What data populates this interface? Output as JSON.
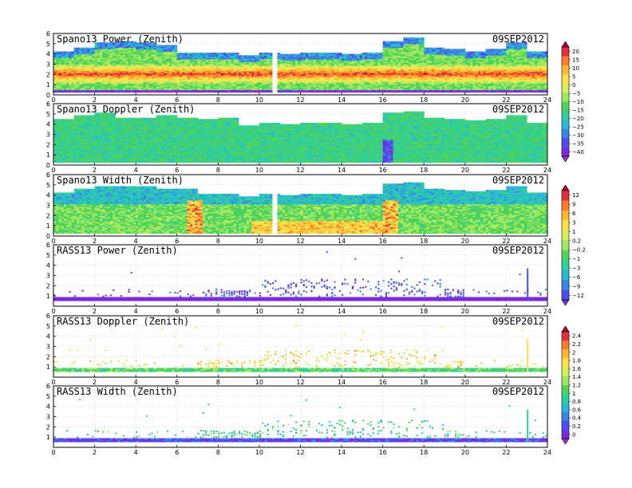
{
  "chart_data": [
    {
      "type": "heatmap",
      "title": "Spano13 Power (Zenith)",
      "date": "09SEP2012",
      "x_ticks": [
        "0",
        "2",
        "4",
        "6",
        "8",
        "10",
        "12",
        "14",
        "16",
        "18",
        "20",
        "22",
        "24"
      ],
      "y_ticks": [
        "0",
        "1",
        "2",
        "3",
        "4",
        "5",
        "6"
      ],
      "xlim": [
        0,
        24
      ],
      "ylim": [
        0,
        6
      ],
      "colorbar_group": 0,
      "profile": {
        "top_height": [
          4.2,
          4.6,
          5.0,
          5.2,
          5.0,
          4.8,
          4.0,
          4.0,
          4.1,
          3.8,
          4.0,
          3.9,
          4.0,
          4.0,
          3.9,
          4.1,
          5.2,
          5.5,
          4.6,
          4.4,
          4.2,
          4.4,
          5.0,
          4.2,
          4.0
        ],
        "band_height": 2.0,
        "band_value": 12,
        "background_value": -10,
        "low_value": -40,
        "gap_hours": [
          10.6,
          10.8
        ]
      }
    },
    {
      "type": "heatmap",
      "title": "Spano13 Doppler (Zenith)",
      "date": "09SEP2012",
      "x_ticks": [
        "0",
        "2",
        "4",
        "6",
        "8",
        "10",
        "12",
        "14",
        "16",
        "18",
        "20",
        "22",
        "24"
      ],
      "y_ticks": [
        "0",
        "1",
        "2",
        "3",
        "4",
        "5",
        "6"
      ],
      "xlim": [
        0,
        24
      ],
      "ylim": [
        0,
        6
      ],
      "colorbar_group": 0,
      "profile": {
        "top_height": [
          4.4,
          4.8,
          5.0,
          4.6,
          4.6,
          4.8,
          4.6,
          4.4,
          4.5,
          3.8,
          4.0,
          3.9,
          4.0,
          4.0,
          3.9,
          4.1,
          5.0,
          5.2,
          4.6,
          4.4,
          4.3,
          4.4,
          4.8,
          4.0,
          3.8
        ],
        "background_value": -15,
        "anomaly_hour": 16.2,
        "anomaly_value": -35
      }
    },
    {
      "type": "heatmap",
      "title": "Spano13 Width (Zenith)",
      "date": "09SEP2012",
      "x_ticks": [
        "0",
        "2",
        "4",
        "6",
        "8",
        "10",
        "12",
        "14",
        "16",
        "18",
        "20",
        "22",
        "24"
      ],
      "y_ticks": [
        "0",
        "1",
        "2",
        "3",
        "4",
        "5",
        "6"
      ],
      "xlim": [
        0,
        24
      ],
      "ylim": [
        0,
        6
      ],
      "colorbar_group": 1,
      "profile": {
        "top_height": [
          4.2,
          4.6,
          4.8,
          4.8,
          4.8,
          4.6,
          4.6,
          4.0,
          4.1,
          3.8,
          4.0,
          3.9,
          4.0,
          4.0,
          3.9,
          4.1,
          5.0,
          5.2,
          4.6,
          4.4,
          4.3,
          4.4,
          4.8,
          4.2,
          4.0
        ],
        "background_value": -1,
        "hot_hours": [
          6.8,
          16.3
        ],
        "hot_value": 9,
        "gap_hours": [
          10.6,
          10.8
        ]
      }
    },
    {
      "type": "scatter",
      "title": "RASS13 Power (Zenith)",
      "date": "09SEP2012",
      "x_ticks": [
        "0",
        "2",
        "4",
        "6",
        "8",
        "10",
        "12",
        "14",
        "16",
        "18",
        "20",
        "22",
        "24"
      ],
      "y_ticks": [
        "1",
        "2",
        "3",
        "4",
        "5",
        "6"
      ],
      "xlim": [
        0,
        24
      ],
      "ylim": [
        0,
        6
      ],
      "colorbar_group": 1,
      "layer": {
        "base_height": 0.6,
        "base_value": -12,
        "scatter_value": -9,
        "spike_hour": 23.0
      }
    },
    {
      "type": "scatter",
      "title": "RASS13 Doppler (Zenith)",
      "date": "09SEP2012",
      "x_ticks": [
        "0",
        "2",
        "4",
        "6",
        "8",
        "10",
        "12",
        "14",
        "16",
        "18",
        "20",
        "22",
        "24"
      ],
      "y_ticks": [
        "1",
        "2",
        "3",
        "4",
        "5",
        "6"
      ],
      "xlim": [
        0,
        24
      ],
      "ylim": [
        0,
        6
      ],
      "colorbar_group": 2,
      "layer": {
        "base_height": 0.6,
        "base_value": 1.1,
        "scatter_value": 1.6,
        "spike_hour": 23.0
      }
    },
    {
      "type": "scatter",
      "title": "RASS13 Width (Zenith)",
      "date": "09SEP2012",
      "x_ticks": [
        "0",
        "2",
        "4",
        "6",
        "8",
        "10",
        "12",
        "14",
        "16",
        "18",
        "20",
        "22",
        "24"
      ],
      "y_ticks": [
        "1",
        "2",
        "3",
        "4",
        "5",
        "6"
      ],
      "xlim": [
        0,
        24
      ],
      "ylim": [
        0,
        6
      ],
      "colorbar_group": 2,
      "layer": {
        "base_height": 0.6,
        "base_value": 0.4,
        "scatter_value": 1.0,
        "spike_hour": 23.0
      }
    }
  ],
  "colorbars": [
    {
      "labels": [
        "20",
        "15",
        "10",
        "5",
        "0",
        "−5",
        "−10",
        "−15",
        "−20",
        "−25",
        "−30",
        "−35",
        "−40"
      ],
      "colors": [
        "#b0003a",
        "#e0303a",
        "#ff7a2a",
        "#ffb732",
        "#fde04a",
        "#d7ee5a",
        "#9fe860",
        "#4fd35a",
        "#2fcf9c",
        "#2ab8d6",
        "#3a86e6",
        "#4a4ff0",
        "#7a2be0",
        "#a030d8"
      ]
    },
    {
      "labels": [
        "12",
        "9",
        "6",
        "3",
        "1",
        "0.2",
        "−0.2",
        "−1",
        "−3",
        "−6",
        "−9",
        "−12"
      ],
      "colors": [
        "#b0003a",
        "#e0303a",
        "#ff7a2a",
        "#ffb732",
        "#fde04a",
        "#d7ee5a",
        "#9fe860",
        "#4fd35a",
        "#2fcf9c",
        "#2ab8d6",
        "#3a86e6",
        "#4a4ff0",
        "#7a2be0"
      ]
    },
    {
      "labels": [
        "2.4",
        "2.2",
        "2",
        "1.8",
        "1.6",
        "1.4",
        "1.2",
        "1",
        "0.8",
        "0.6",
        "0.4",
        "0.2",
        "0"
      ],
      "colors": [
        "#b0003a",
        "#e0303a",
        "#ff7a2a",
        "#ffb732",
        "#fde04a",
        "#d7ee5a",
        "#9fe860",
        "#4fd35a",
        "#2fcf9c",
        "#2ab8d6",
        "#3a86e6",
        "#4a4ff0",
        "#7a2be0",
        "#a030d8"
      ]
    }
  ]
}
